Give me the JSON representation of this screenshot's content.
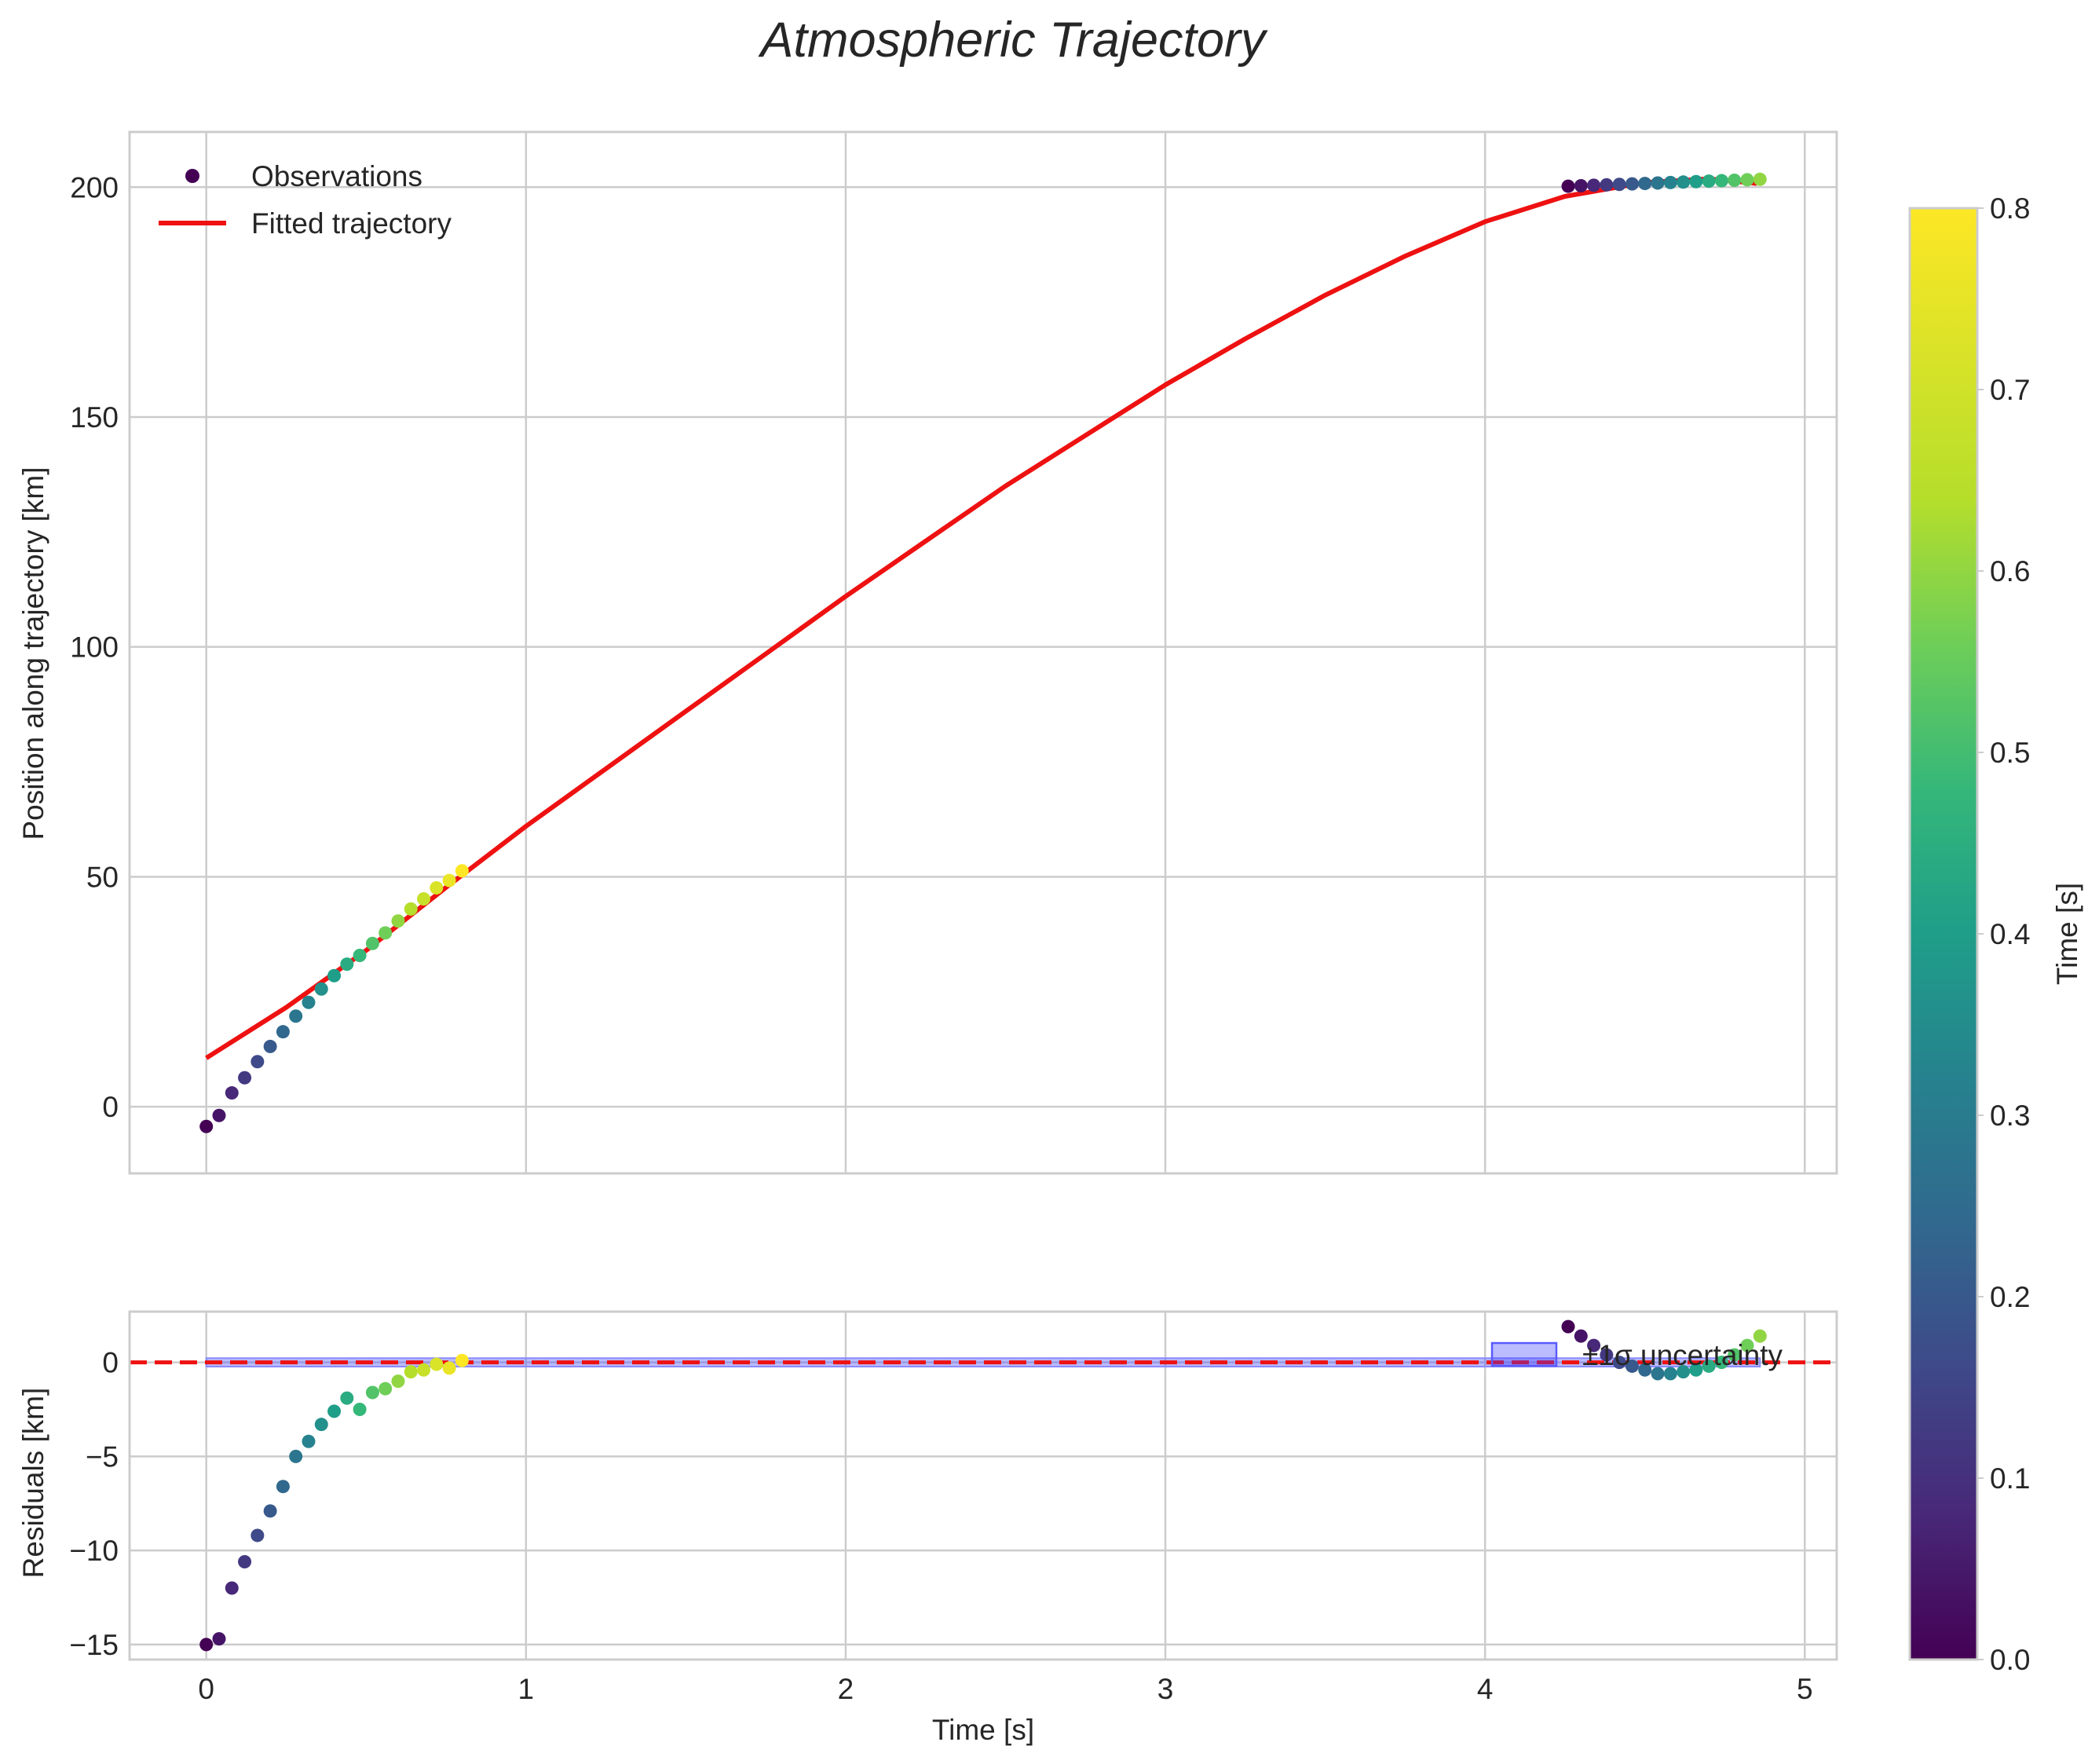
{
  "chart_data": [
    {
      "type": "scatter",
      "panel": "main",
      "title": "Atmospheric Trajectory",
      "xlabel": "",
      "ylabel": "Position along trajectory [km]",
      "xlim": [
        -0.24,
        5.1
      ],
      "ylim": [
        -14.5,
        212
      ],
      "xticks": [
        0,
        1,
        2,
        3,
        4,
        5
      ],
      "xtick_labels_shown": false,
      "yticks": [
        0,
        50,
        100,
        150,
        200
      ],
      "grid": true,
      "legend": {
        "placement": "top-left",
        "entries": [
          {
            "label": "Observations",
            "marker": "circle",
            "color": "#440154"
          },
          {
            "label": "Fitted trajectory",
            "marker": "line",
            "color": "#ee1111"
          }
        ]
      },
      "series": [
        {
          "name": "Observations",
          "kind": "scatter",
          "colormap": "viridis",
          "color_by": "Time [s]",
          "clim": [
            0.0,
            0.8
          ],
          "points": [
            {
              "x": 0.0,
              "y": -4.3,
              "c": 0.0
            },
            {
              "x": 0.04,
              "y": -1.9,
              "c": 0.04
            },
            {
              "x": 0.08,
              "y": 3.0,
              "c": 0.08
            },
            {
              "x": 0.12,
              "y": 6.3,
              "c": 0.12
            },
            {
              "x": 0.16,
              "y": 9.8,
              "c": 0.16
            },
            {
              "x": 0.2,
              "y": 13.1,
              "c": 0.2
            },
            {
              "x": 0.24,
              "y": 16.3,
              "c": 0.24
            },
            {
              "x": 0.28,
              "y": 19.7,
              "c": 0.28
            },
            {
              "x": 0.32,
              "y": 22.7,
              "c": 0.32
            },
            {
              "x": 0.36,
              "y": 25.6,
              "c": 0.36
            },
            {
              "x": 0.4,
              "y": 28.5,
              "c": 0.4
            },
            {
              "x": 0.44,
              "y": 31.0,
              "c": 0.44
            },
            {
              "x": 0.48,
              "y": 32.9,
              "c": 0.48
            },
            {
              "x": 0.52,
              "y": 35.5,
              "c": 0.52
            },
            {
              "x": 0.56,
              "y": 37.8,
              "c": 0.56
            },
            {
              "x": 0.6,
              "y": 40.4,
              "c": 0.6
            },
            {
              "x": 0.64,
              "y": 43.0,
              "c": 0.64
            },
            {
              "x": 0.68,
              "y": 45.2,
              "c": 0.68
            },
            {
              "x": 0.72,
              "y": 47.6,
              "c": 0.72
            },
            {
              "x": 0.76,
              "y": 49.2,
              "c": 0.76
            },
            {
              "x": 0.8,
              "y": 51.3,
              "c": 0.8
            },
            {
              "x": 4.26,
              "y": 200.2,
              "c": 0.0
            },
            {
              "x": 4.3,
              "y": 200.3,
              "c": 0.04
            },
            {
              "x": 4.34,
              "y": 200.4,
              "c": 0.08
            },
            {
              "x": 4.38,
              "y": 200.5,
              "c": 0.12
            },
            {
              "x": 4.42,
              "y": 200.6,
              "c": 0.16
            },
            {
              "x": 4.46,
              "y": 200.7,
              "c": 0.2
            },
            {
              "x": 4.5,
              "y": 200.8,
              "c": 0.24
            },
            {
              "x": 4.54,
              "y": 200.9,
              "c": 0.28
            },
            {
              "x": 4.58,
              "y": 201.0,
              "c": 0.32
            },
            {
              "x": 4.62,
              "y": 201.1,
              "c": 0.36
            },
            {
              "x": 4.66,
              "y": 201.2,
              "c": 0.4
            },
            {
              "x": 4.7,
              "y": 201.3,
              "c": 0.44
            },
            {
              "x": 4.74,
              "y": 201.4,
              "c": 0.48
            },
            {
              "x": 4.78,
              "y": 201.5,
              "c": 0.52
            },
            {
              "x": 4.82,
              "y": 201.6,
              "c": 0.56
            },
            {
              "x": 4.86,
              "y": 201.7,
              "c": 0.6
            }
          ]
        },
        {
          "name": "Fitted trajectory",
          "kind": "line",
          "color": "#ee1111",
          "points": [
            {
              "x": 0.0,
              "y": 10.6
            },
            {
              "x": 0.25,
              "y": 21.6
            },
            {
              "x": 0.5,
              "y": 34.0
            },
            {
              "x": 0.75,
              "y": 47.7
            },
            {
              "x": 1.0,
              "y": 61.0
            },
            {
              "x": 1.25,
              "y": 73.5
            },
            {
              "x": 1.5,
              "y": 86.0
            },
            {
              "x": 1.75,
              "y": 98.5
            },
            {
              "x": 2.0,
              "y": 111.0
            },
            {
              "x": 2.25,
              "y": 123.0
            },
            {
              "x": 2.5,
              "y": 135.0
            },
            {
              "x": 2.75,
              "y": 146.0
            },
            {
              "x": 3.0,
              "y": 157.0
            },
            {
              "x": 3.25,
              "y": 167.0
            },
            {
              "x": 3.5,
              "y": 176.5
            },
            {
              "x": 3.75,
              "y": 185.0
            },
            {
              "x": 4.0,
              "y": 192.5
            },
            {
              "x": 4.25,
              "y": 198.0
            },
            {
              "x": 4.5,
              "y": 201.0
            },
            {
              "x": 4.7,
              "y": 201.8
            },
            {
              "x": 4.85,
              "y": 200.8
            }
          ]
        }
      ]
    },
    {
      "type": "scatter",
      "panel": "residuals",
      "xlabel": "Time [s]",
      "ylabel": "Residuals [km]",
      "xlim": [
        -0.24,
        5.1
      ],
      "ylim": [
        -15.8,
        2.7
      ],
      "xticks": [
        0,
        1,
        2,
        3,
        4,
        5
      ],
      "yticks": [
        0,
        -5,
        -10,
        -15
      ],
      "grid": true,
      "reference_line": {
        "y": 0,
        "style": "dashed",
        "color": "#ee1111"
      },
      "band": {
        "label": "±1σ uncertainty",
        "x": [
          0.0,
          4.86
        ],
        "y": [
          -0.1,
          0.1
        ],
        "color": "#3333ff"
      },
      "legend": {
        "placement": "top-right",
        "entries": [
          {
            "label": "±1σ uncertainty",
            "marker": "patch",
            "color": "#3333ff"
          }
        ]
      },
      "series": [
        {
          "name": "Residuals",
          "kind": "scatter",
          "colormap": "viridis",
          "color_by": "Time [s]",
          "clim": [
            0.0,
            0.8
          ],
          "points": [
            {
              "x": 0.0,
              "y": -15.0,
              "c": 0.0
            },
            {
              "x": 0.04,
              "y": -14.7,
              "c": 0.04
            },
            {
              "x": 0.08,
              "y": -12.0,
              "c": 0.08
            },
            {
              "x": 0.12,
              "y": -10.6,
              "c": 0.12
            },
            {
              "x": 0.16,
              "y": -9.2,
              "c": 0.16
            },
            {
              "x": 0.2,
              "y": -7.9,
              "c": 0.2
            },
            {
              "x": 0.24,
              "y": -6.6,
              "c": 0.24
            },
            {
              "x": 0.28,
              "y": -5.0,
              "c": 0.28
            },
            {
              "x": 0.32,
              "y": -4.2,
              "c": 0.32
            },
            {
              "x": 0.36,
              "y": -3.3,
              "c": 0.36
            },
            {
              "x": 0.4,
              "y": -2.6,
              "c": 0.4
            },
            {
              "x": 0.44,
              "y": -1.9,
              "c": 0.44
            },
            {
              "x": 0.48,
              "y": -2.5,
              "c": 0.48
            },
            {
              "x": 0.52,
              "y": -1.6,
              "c": 0.52
            },
            {
              "x": 0.56,
              "y": -1.4,
              "c": 0.56
            },
            {
              "x": 0.6,
              "y": -1.0,
              "c": 0.6
            },
            {
              "x": 0.64,
              "y": -0.5,
              "c": 0.64
            },
            {
              "x": 0.68,
              "y": -0.4,
              "c": 0.68
            },
            {
              "x": 0.72,
              "y": -0.1,
              "c": 0.72
            },
            {
              "x": 0.76,
              "y": -0.3,
              "c": 0.76
            },
            {
              "x": 0.8,
              "y": 0.1,
              "c": 0.8
            },
            {
              "x": 4.26,
              "y": 1.9,
              "c": 0.0
            },
            {
              "x": 4.3,
              "y": 1.4,
              "c": 0.04
            },
            {
              "x": 4.34,
              "y": 0.9,
              "c": 0.08
            },
            {
              "x": 4.38,
              "y": 0.4,
              "c": 0.12
            },
            {
              "x": 4.42,
              "y": 0.0,
              "c": 0.16
            },
            {
              "x": 4.46,
              "y": -0.2,
              "c": 0.2
            },
            {
              "x": 4.5,
              "y": -0.4,
              "c": 0.24
            },
            {
              "x": 4.54,
              "y": -0.6,
              "c": 0.28
            },
            {
              "x": 4.58,
              "y": -0.6,
              "c": 0.32
            },
            {
              "x": 4.62,
              "y": -0.5,
              "c": 0.36
            },
            {
              "x": 4.66,
              "y": -0.4,
              "c": 0.4
            },
            {
              "x": 4.7,
              "y": -0.2,
              "c": 0.44
            },
            {
              "x": 4.74,
              "y": 0.0,
              "c": 0.48
            },
            {
              "x": 4.78,
              "y": 0.4,
              "c": 0.52
            },
            {
              "x": 4.82,
              "y": 0.9,
              "c": 0.56
            },
            {
              "x": 4.86,
              "y": 1.4,
              "c": 0.6
            }
          ]
        }
      ]
    }
  ],
  "colorbar": {
    "label": "Time [s]",
    "colormap": "viridis",
    "range": [
      0.0,
      0.8
    ],
    "ticks": [
      "0.0",
      "0.1",
      "0.2",
      "0.3",
      "0.4",
      "0.5",
      "0.6",
      "0.7",
      "0.8"
    ]
  }
}
